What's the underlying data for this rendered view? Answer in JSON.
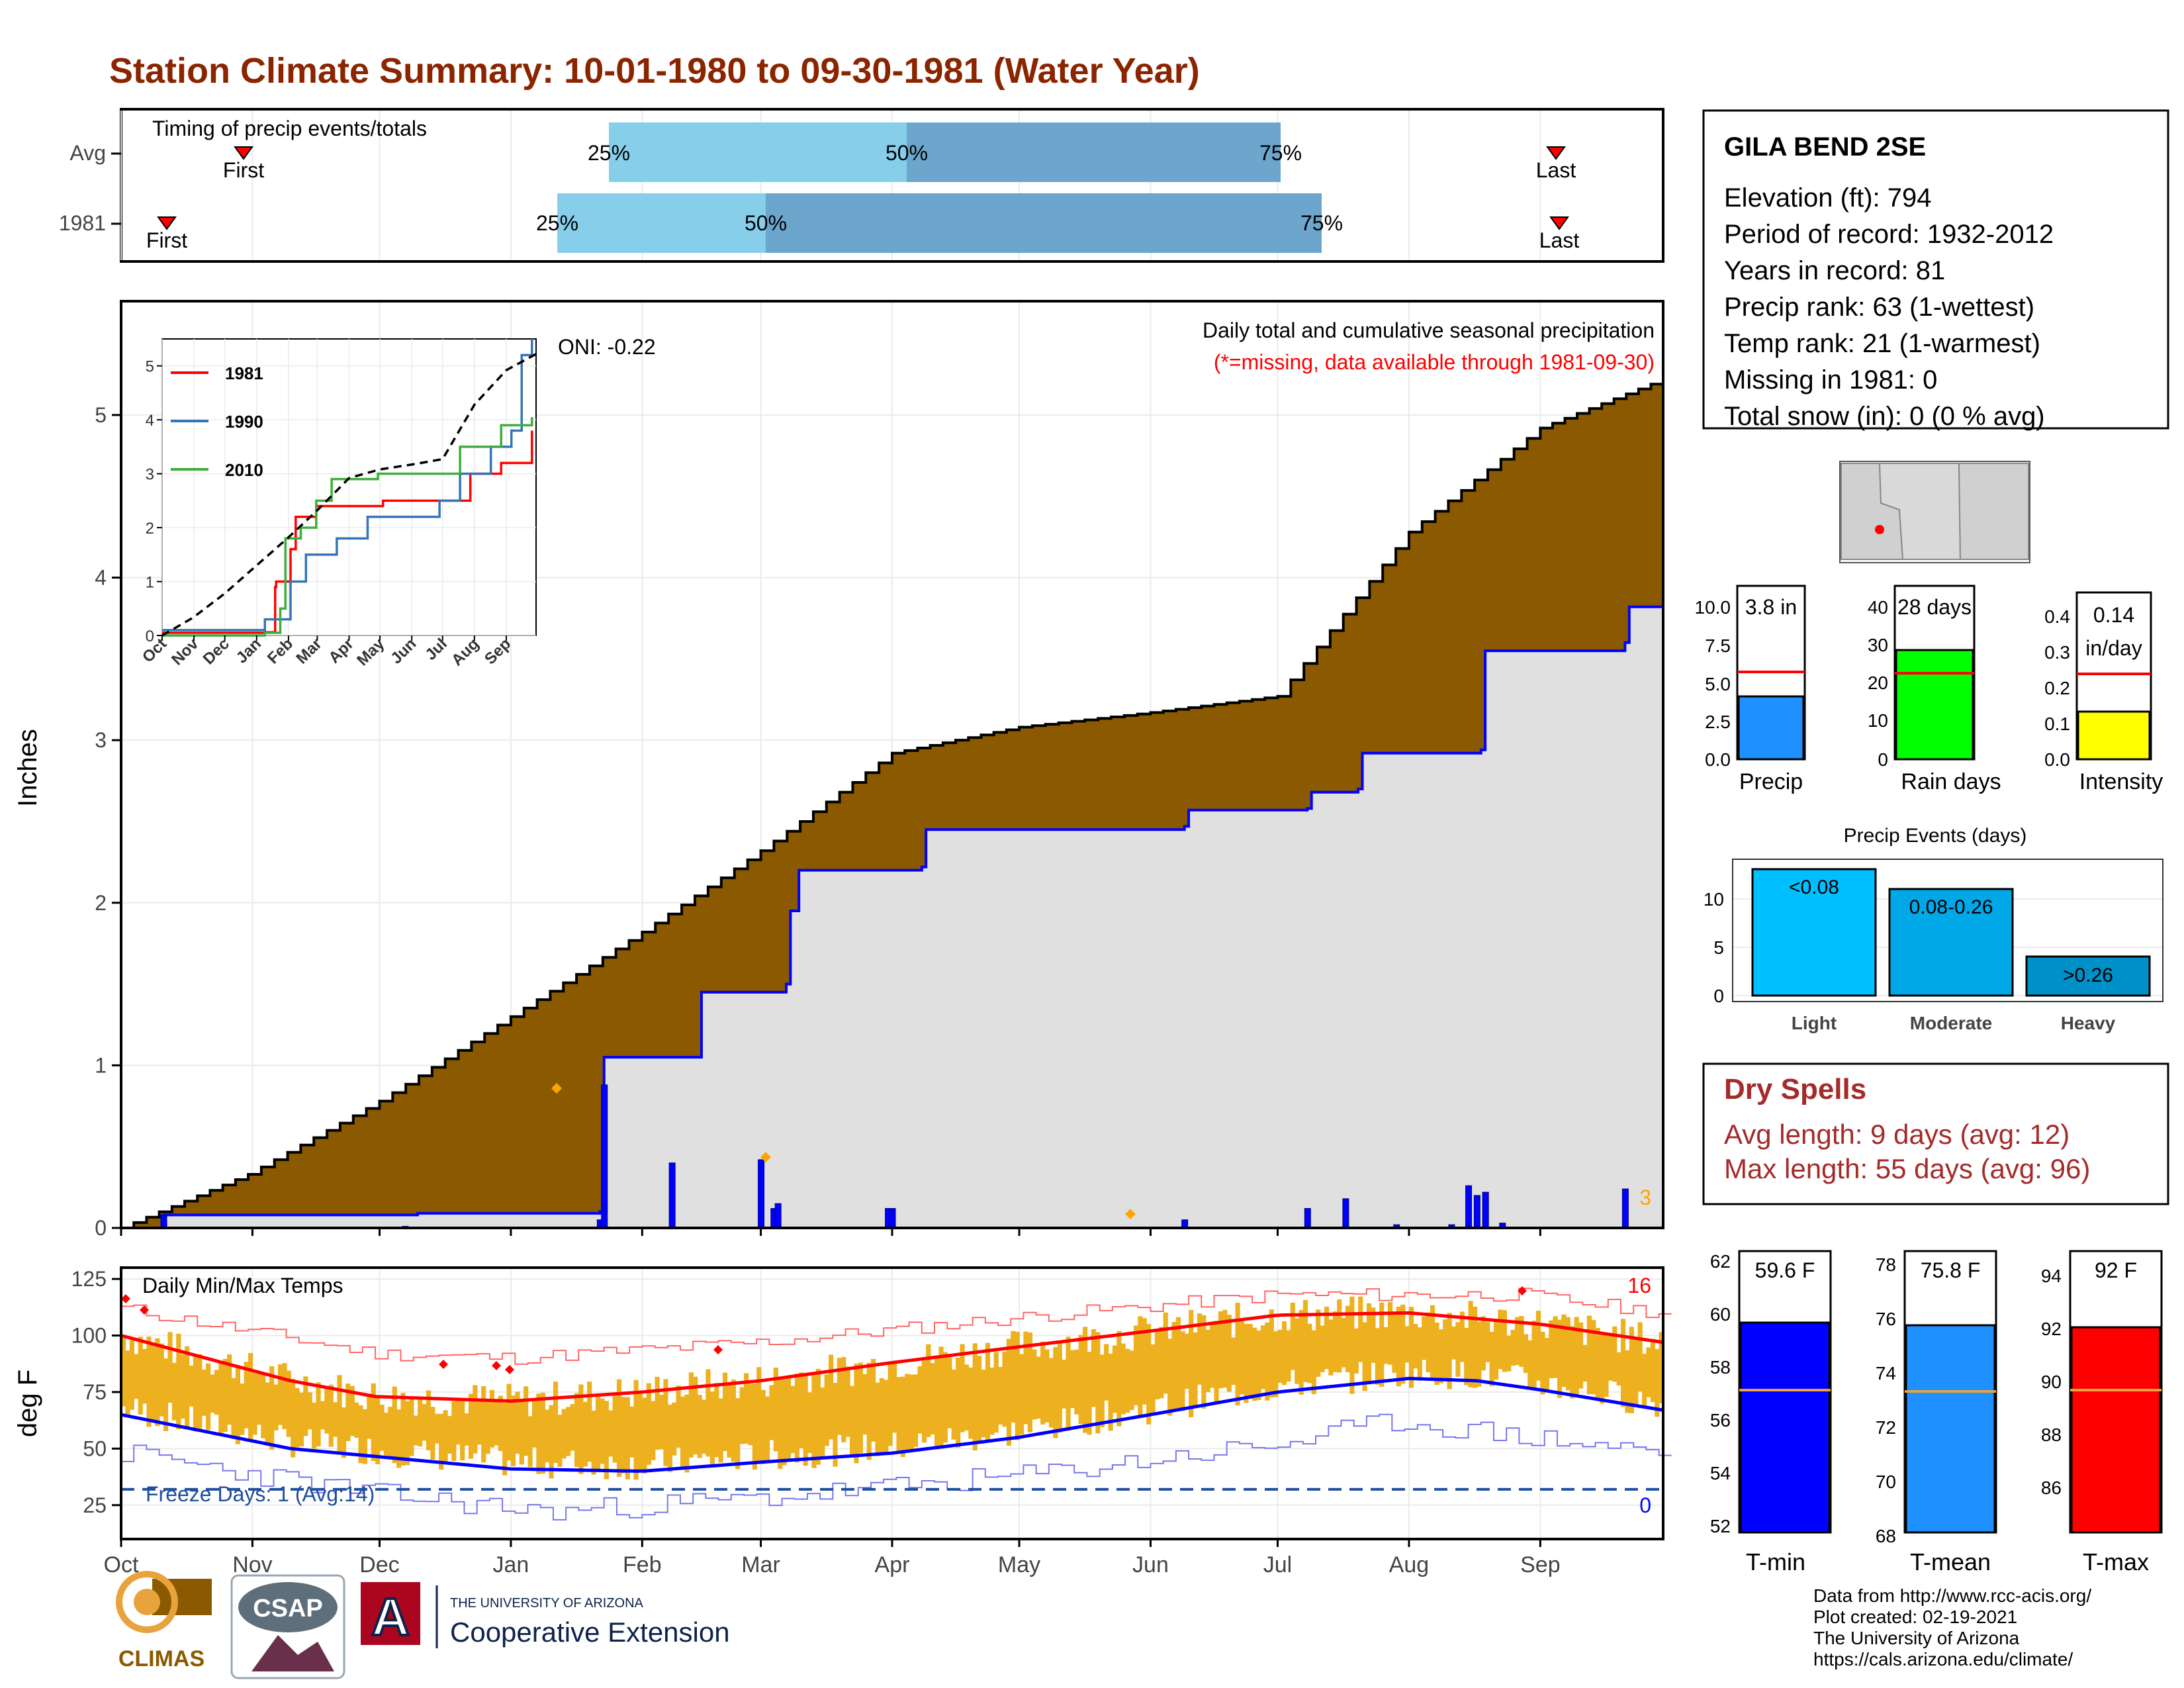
{
  "title": "Station Climate Summary: 10-01-1980 to 09-30-1981 (Water Year)",
  "colors": {
    "title": "#8B2500",
    "brown": "#8B5A00",
    "blue": "#0000FF",
    "red": "#FF0000",
    "gold": "#EDB120",
    "lightblue": "#87CEEB",
    "midblue": "#6CA6CD"
  },
  "timing_panel": {
    "title": "Timing of precip events/totals",
    "rows": [
      {
        "label": "Avg",
        "first": "First",
        "last": "Last",
        "p25": "25%",
        "p50": "50%",
        "p75": "75%"
      },
      {
        "label": "1981",
        "first": "First",
        "last": "Last",
        "p25": "25%",
        "p50": "50%",
        "p75": "75%"
      }
    ]
  },
  "station": {
    "name": "GILA BEND 2SE",
    "lines": [
      "Elevation (ft): 794",
      "Period of record: 1932-2012",
      "Years in record: 81",
      "Precip rank: 63 (1-wettest)",
      "Temp rank: 21 (1-warmest)",
      "Missing in 1981: 0",
      "Total snow (in): 0 (0 % avg)"
    ]
  },
  "precip_panel": {
    "ylabel": "Inches",
    "header1": "Daily total and cumulative seasonal precipitation",
    "header2": "(*=missing, data available through 1981-09-30)",
    "oni": "ONI: -0.22",
    "corner_count": "3",
    "yticks": [
      "0",
      "1",
      "2",
      "3",
      "4",
      "5"
    ]
  },
  "months": [
    "Oct",
    "Nov",
    "Dec",
    "Jan",
    "Feb",
    "Mar",
    "Apr",
    "May",
    "Jun",
    "Jul",
    "Aug",
    "Sep"
  ],
  "inset": {
    "legend": [
      "1981",
      "1990",
      "2010"
    ],
    "yticks": [
      "0",
      "1",
      "2",
      "3",
      "4",
      "5"
    ],
    "xticks": [
      "Oct",
      "Nov",
      "Dec",
      "Jan",
      "Feb",
      "Mar",
      "Apr",
      "May",
      "Jun",
      "Jul",
      "Aug",
      "Sep"
    ]
  },
  "temp_panel": {
    "title": "Daily Min/Max Temps",
    "ylabel": "deg F",
    "yticks": [
      "25",
      "50",
      "75",
      "100",
      "125"
    ],
    "freeze": "Freeze Days: 1 (Avg:14)",
    "max_count": "16",
    "min_count": "0"
  },
  "precip_bars": [
    {
      "label": "Precip",
      "value_label": "3.8 in",
      "yticks": [
        "0.0",
        "2.5",
        "5.0",
        "7.5",
        "10.0"
      ]
    },
    {
      "label": "Rain days",
      "value_label": "28 days",
      "yticks": [
        "0",
        "10",
        "20",
        "30",
        "40"
      ]
    },
    {
      "label": "Intensity",
      "value_label1": "0.14",
      "value_label2": "in/day",
      "yticks": [
        "0.0",
        "0.1",
        "0.2",
        "0.3",
        "0.4"
      ]
    }
  ],
  "events": {
    "title": "Precip Events (days)",
    "categories": [
      "Light",
      "Moderate",
      "Heavy"
    ],
    "labels": [
      "<0.08",
      "0.08-0.26",
      ">0.26"
    ],
    "yticks": [
      "0",
      "5",
      "10"
    ]
  },
  "dry_spells": {
    "title": "Dry Spells",
    "line1": "Avg length: 9 days (avg: 12)",
    "line2": "Max length: 55 days (avg: 96)"
  },
  "temp_bars": [
    {
      "label": "T-min",
      "value_label": "59.6 F",
      "yticks": [
        "52",
        "54",
        "56",
        "58",
        "60",
        "62"
      ]
    },
    {
      "label": "T-mean",
      "value_label": "75.8 F",
      "yticks": [
        "68",
        "70",
        "72",
        "74",
        "76",
        "78"
      ]
    },
    {
      "label": "T-max",
      "value_label": "92 F",
      "yticks": [
        "86",
        "88",
        "90",
        "92",
        "94"
      ]
    }
  ],
  "footer": {
    "lines": [
      "Data from http://www.rcc-acis.org/",
      "Plot created: 02-19-2021",
      "The University of Arizona",
      "https://cals.arizona.edu/climate/"
    ]
  },
  "logos": {
    "climas": "CLIMAS",
    "csap": "CSAP",
    "ua_small": "THE UNIVERSITY OF ARIZONA",
    "ua_big": "Cooperative Extension"
  },
  "chart_data": {
    "type": "area",
    "title": "Daily total and cumulative seasonal precipitation",
    "ylabel": "Inches",
    "ylim": [
      0,
      5.7
    ],
    "x_months": [
      "Oct",
      "Nov",
      "Dec",
      "Jan",
      "Feb",
      "Mar",
      "Apr",
      "May",
      "Jun",
      "Jul",
      "Aug",
      "Sep"
    ],
    "avg_cumulative": {
      "day": [
        0,
        30,
        61,
        92,
        123,
        151,
        182,
        212,
        243,
        273,
        304,
        335,
        364
      ],
      "inches": [
        0,
        0.33,
        0.78,
        1.3,
        1.82,
        2.32,
        2.92,
        3.08,
        3.17,
        3.27,
        4.28,
        4.92,
        5.22
      ]
    },
    "obs_cumulative": {
      "day": [
        0,
        10,
        70,
        113,
        114,
        137,
        157,
        158,
        160,
        189,
        190,
        251,
        252,
        280,
        281,
        292,
        293,
        321,
        322,
        355,
        356,
        364
      ],
      "inches": [
        0,
        0.08,
        0.09,
        0.1,
        1.05,
        1.45,
        1.5,
        1.95,
        2.2,
        2.22,
        2.45,
        2.47,
        2.57,
        2.58,
        2.68,
        2.7,
        2.92,
        2.94,
        3.55,
        3.6,
        3.82,
        3.82
      ]
    },
    "daily_bars": {
      "day": [
        10,
        67,
        113,
        114,
        130,
        151,
        154,
        155,
        181,
        182,
        251,
        280,
        289,
        301,
        314,
        318,
        320,
        322,
        326,
        355
      ],
      "inches": [
        0.08,
        0.01,
        0.05,
        0.88,
        0.4,
        0.42,
        0.12,
        0.15,
        0.12,
        0.12,
        0.05,
        0.12,
        0.18,
        0.02,
        0.02,
        0.26,
        0.2,
        0.22,
        0.03,
        0.24
      ]
    },
    "inset_series": [
      {
        "name": "1981",
        "color": "#FF0000",
        "day": [
          0,
          100,
          110,
          111,
          125,
          130,
          150,
          215,
          300,
          330,
          360
        ],
        "inches": [
          0.05,
          0.06,
          0.9,
          1.0,
          1.6,
          2.2,
          2.4,
          2.5,
          3.0,
          3.2,
          3.8
        ]
      },
      {
        "name": "1990",
        "color": "#3575B5",
        "day": [
          0,
          100,
          125,
          140,
          170,
          200,
          270,
          290,
          320,
          340,
          350,
          360
        ],
        "inches": [
          0.1,
          0.3,
          1.0,
          1.5,
          1.8,
          2.2,
          2.5,
          3.0,
          3.5,
          3.8,
          5.2,
          5.5
        ]
      },
      {
        "name": "2010",
        "color": "#3CAF3C",
        "day": [
          0,
          100,
          115,
          120,
          135,
          150,
          165,
          210,
          270,
          290,
          330,
          360
        ],
        "inches": [
          0.0,
          0.05,
          0.5,
          1.8,
          2.0,
          2.5,
          2.9,
          3.0,
          3.0,
          3.5,
          3.9,
          4.05
        ]
      }
    ],
    "inset_avg": {
      "day": [
        0,
        30,
        61,
        92,
        123,
        151,
        182,
        212,
        243,
        273,
        304,
        335,
        364
      ],
      "inches": [
        0,
        0.33,
        0.78,
        1.3,
        1.82,
        2.32,
        2.92,
        3.08,
        3.17,
        3.27,
        4.28,
        4.92,
        5.22
      ]
    },
    "temp_avg_max": {
      "day": [
        0,
        40,
        60,
        92,
        123,
        151,
        182,
        212,
        243,
        273,
        304,
        335,
        364
      ],
      "degF": [
        100,
        80,
        73,
        71,
        75,
        80,
        88,
        95,
        102,
        109,
        110,
        105,
        97
      ]
    },
    "temp_avg_min": {
      "day": [
        0,
        40,
        92,
        123,
        151,
        182,
        212,
        243,
        273,
        304,
        320,
        335,
        364
      ],
      "degF": [
        65,
        50,
        41,
        40,
        44,
        48,
        55,
        65,
        75,
        81,
        80,
        76,
        67
      ]
    },
    "temp_record_high": {
      "day": [
        0,
        60,
        92,
        151,
        212,
        273,
        330,
        364
      ],
      "degF": [
        112,
        92,
        90,
        97,
        108,
        118,
        118,
        110
      ]
    },
    "temp_record_low": {
      "day": [
        0,
        60,
        100,
        151,
        212,
        273,
        300,
        364
      ],
      "degF": [
        48,
        30,
        22,
        28,
        38,
        52,
        62,
        48
      ]
    },
    "freeze_line_degF": 32,
    "temp_ylim": [
      10,
      130
    ]
  }
}
